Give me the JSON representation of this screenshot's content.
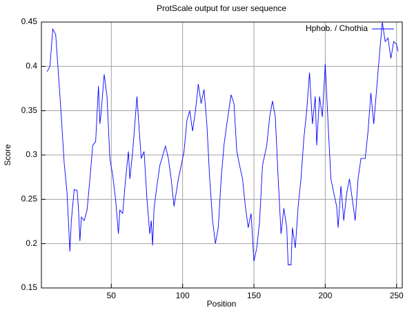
{
  "chart_data": {
    "type": "line",
    "title": "ProtScale output for user sequence",
    "x_label": "Position",
    "y_label": "Score",
    "xlim": [
      1,
      254
    ],
    "ylim": [
      0.15,
      0.45
    ],
    "xticks": [
      50,
      100,
      150,
      200,
      250
    ],
    "yticks": [
      0.15,
      0.2,
      0.25,
      0.3,
      0.35,
      0.4,
      0.45
    ],
    "grid": true,
    "legend": "top-right",
    "series": [
      {
        "name": "Hphob. / Chothia",
        "color": "#0000ff",
        "x": [
          5,
          7,
          9,
          11,
          13,
          15,
          17,
          19,
          21,
          22,
          24,
          26,
          27,
          28,
          29,
          31,
          33,
          35,
          37,
          39,
          41,
          42,
          43,
          45,
          47,
          49,
          51,
          53,
          55,
          56,
          58,
          60,
          62,
          63,
          65,
          68,
          70,
          71,
          73,
          75,
          77,
          78,
          79,
          80,
          82,
          84,
          88,
          90,
          92,
          94,
          97,
          99,
          101,
          103,
          105,
          107,
          109,
          111,
          113,
          115,
          117,
          119,
          121,
          123,
          125,
          127,
          129,
          131,
          134,
          136,
          138,
          140,
          142,
          144,
          146,
          148,
          150,
          152,
          154,
          156,
          159,
          161,
          163,
          165,
          167,
          169,
          171,
          173,
          174,
          176,
          177,
          179,
          181,
          183,
          185,
          187,
          189,
          191,
          193,
          194,
          196,
          198,
          200,
          202,
          204,
          206,
          208,
          209,
          211,
          213,
          215,
          217,
          219,
          221,
          223,
          225,
          228,
          230,
          232,
          234,
          236,
          238,
          240,
          242,
          244,
          246,
          248,
          250,
          251
        ],
        "values": [
          0.394,
          0.4,
          0.442,
          0.436,
          0.39,
          0.343,
          0.29,
          0.257,
          0.191,
          0.226,
          0.261,
          0.26,
          0.24,
          0.203,
          0.23,
          0.226,
          0.238,
          0.273,
          0.311,
          0.315,
          0.378,
          0.335,
          0.35,
          0.391,
          0.366,
          0.296,
          0.277,
          0.25,
          0.211,
          0.238,
          0.234,
          0.273,
          0.304,
          0.273,
          0.304,
          0.366,
          0.319,
          0.296,
          0.304,
          0.25,
          0.211,
          0.226,
          0.198,
          0.24,
          0.265,
          0.288,
          0.31,
          0.296,
          0.273,
          0.242,
          0.273,
          0.288,
          0.304,
          0.339,
          0.35,
          0.327,
          0.35,
          0.38,
          0.358,
          0.374,
          0.335,
          0.273,
          0.226,
          0.2,
          0.218,
          0.273,
          0.311,
          0.335,
          0.368,
          0.358,
          0.304,
          0.288,
          0.273,
          0.242,
          0.218,
          0.234,
          0.18,
          0.195,
          0.226,
          0.288,
          0.311,
          0.343,
          0.361,
          0.343,
          0.273,
          0.211,
          0.24,
          0.218,
          0.176,
          0.176,
          0.218,
          0.195,
          0.242,
          0.273,
          0.319,
          0.35,
          0.393,
          0.335,
          0.366,
          0.311,
          0.366,
          0.343,
          0.403,
          0.335,
          0.273,
          0.257,
          0.242,
          0.218,
          0.265,
          0.226,
          0.257,
          0.273,
          0.25,
          0.226,
          0.273,
          0.296,
          0.296,
          0.327,
          0.37,
          0.335,
          0.374,
          0.413,
          0.45,
          0.428,
          0.432,
          0.409,
          0.428,
          0.425,
          0.417
        ]
      }
    ]
  }
}
